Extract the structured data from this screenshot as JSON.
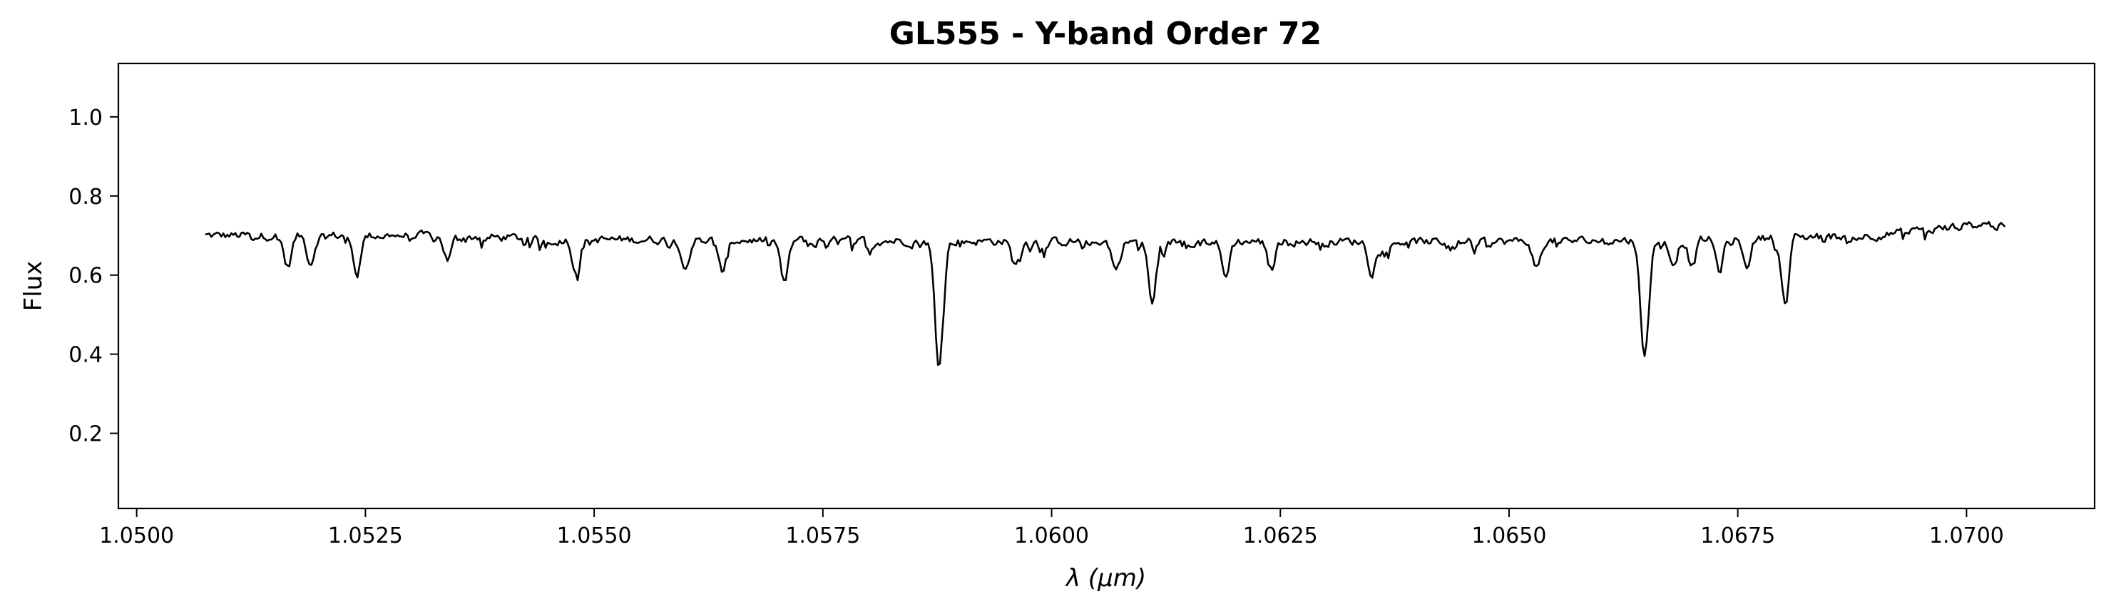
{
  "chart_data": {
    "type": "line",
    "title": "GL555 - Y-band Order 72",
    "xlabel": "λ (μm)",
    "xlabel_parts": {
      "symbol": "λ",
      "unit": "μm"
    },
    "ylabel": "Flux",
    "xlim": [
      1.0498,
      1.0714
    ],
    "ylim": [
      0.01,
      1.135
    ],
    "x_ticks": [
      1.05,
      1.0525,
      1.055,
      1.0575,
      1.06,
      1.0625,
      1.065,
      1.0675,
      1.07
    ],
    "x_tick_labels": [
      "1.0500",
      "1.0525",
      "1.0550",
      "1.0575",
      "1.0600",
      "1.0625",
      "1.0650",
      "1.0675",
      "1.0700"
    ],
    "y_ticks": [
      0.2,
      0.4,
      0.6,
      0.8,
      1.0
    ],
    "y_tick_labels": [
      "0.2",
      "0.4",
      "0.6",
      "0.8",
      "1.0"
    ],
    "grid": false,
    "line_color": "#000000",
    "series": [
      {
        "x_start": 1.05075,
        "x_end": 1.07042,
        "points": 900,
        "baseline": [
          [
            1.05075,
            0.7
          ],
          [
            1.053,
            0.7
          ],
          [
            1.055,
            0.69
          ],
          [
            1.06,
            0.685
          ],
          [
            1.065,
            0.685
          ],
          [
            1.067,
            0.69
          ],
          [
            1.069,
            0.7
          ],
          [
            1.0702,
            0.73
          ],
          [
            1.07042,
            0.72
          ]
        ],
        "absorption_lines": [
          {
            "center": 1.05877,
            "depth": 0.31,
            "width": 4.5e-05
          },
          {
            "center": 1.06648,
            "depth": 0.29,
            "width": 4.5e-05
          },
          {
            "center": 1.06802,
            "depth": 0.17,
            "width": 4e-05
          },
          {
            "center": 1.0611,
            "depth": 0.16,
            "width": 4e-05
          },
          {
            "center": 1.05708,
            "depth": 0.11,
            "width": 4e-05
          },
          {
            "center": 1.0619,
            "depth": 0.09,
            "width": 4e-05
          },
          {
            "center": 1.0548,
            "depth": 0.08,
            "width": 4e-05
          },
          {
            "center": 1.056,
            "depth": 0.07,
            "width": 4e-05
          },
          {
            "center": 1.0564,
            "depth": 0.08,
            "width": 4e-05
          },
          {
            "center": 1.0524,
            "depth": 0.09,
            "width": 4e-05
          },
          {
            "center": 1.0519,
            "depth": 0.07,
            "width": 4e-05
          },
          {
            "center": 1.05165,
            "depth": 0.08,
            "width": 4e-05
          },
          {
            "center": 1.0624,
            "depth": 0.07,
            "width": 4e-05
          },
          {
            "center": 1.0635,
            "depth": 0.08,
            "width": 4e-05
          },
          {
            "center": 1.0653,
            "depth": 0.07,
            "width": 4e-05
          },
          {
            "center": 1.067,
            "depth": 0.07,
            "width": 4e-05
          },
          {
            "center": 1.0673,
            "depth": 0.08,
            "width": 4e-05
          },
          {
            "center": 1.0676,
            "depth": 0.06,
            "width": 4e-05
          },
          {
            "center": 1.0668,
            "depth": 0.06,
            "width": 4e-05
          },
          {
            "center": 1.0534,
            "depth": 0.06,
            "width": 4e-05
          },
          {
            "center": 1.0596,
            "depth": 0.06,
            "width": 4e-05
          },
          {
            "center": 1.0607,
            "depth": 0.07,
            "width": 4e-05
          }
        ]
      }
    ]
  }
}
